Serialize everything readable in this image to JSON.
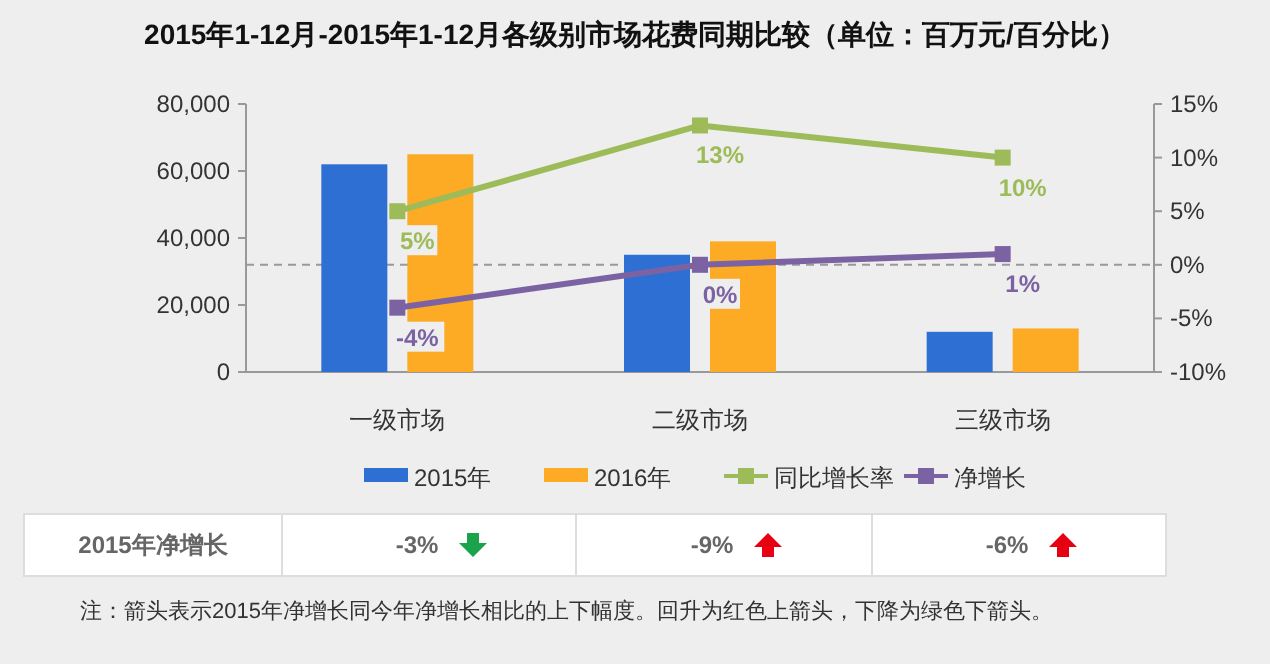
{
  "chart_data": [
    {
      "type": "bar",
      "title": "2015年1-12月-2015年1-12月各级别市场花费同期比较（单位：百万元/百分比）",
      "categories": [
        "一级市场",
        "二级市场",
        "三级市场"
      ],
      "series": [
        {
          "name": "2015年",
          "color": "#2e6fd4",
          "values": [
            62000,
            35000,
            12000
          ]
        },
        {
          "name": "2016年",
          "color": "#fdaa25",
          "values": [
            65000,
            39000,
            13000
          ]
        },
        {
          "name": "同比增长率",
          "type": "line",
          "axis": "y2",
          "color": "#9dbb59",
          "values": [
            5,
            13,
            10
          ],
          "value_labels": [
            "5%",
            "13%",
            "10%"
          ]
        },
        {
          "name": "净增长",
          "type": "line",
          "axis": "y2",
          "color": "#7b62a3",
          "values": [
            -4,
            0,
            1
          ],
          "value_labels": [
            "-4%",
            "0%",
            "1%"
          ]
        }
      ],
      "ylim": [
        0,
        80000
      ],
      "yticks": [
        0,
        {
          "value": 20000,
          "label": "20,000"
        },
        {
          "value": 40000,
          "label": "40,000"
        },
        {
          "value": 60000,
          "label": "60,000"
        },
        {
          "value": 80000,
          "label": "80,000"
        }
      ],
      "y2lim": [
        -10,
        15
      ],
      "y2ticks": [
        {
          "value": -10,
          "label": "-10%"
        },
        {
          "value": -5,
          "label": "-5%"
        },
        {
          "value": 0,
          "label": "0%"
        },
        {
          "value": 5,
          "label": "5%"
        },
        {
          "value": 10,
          "label": "10%"
        },
        {
          "value": 15,
          "label": "15%"
        }
      ],
      "ref_lines": [
        {
          "axis": "y2",
          "value": 0,
          "color": "#999999",
          "line_style": "dashed"
        }
      ],
      "marker": "square",
      "legend": "bottom"
    },
    {
      "type": "other",
      "annotations": [
        "2015年净增长",
        "-3%",
        "-9%",
        "-6%",
        "注：箭头表示2015年净增长同今年净增长相比的上下幅度。回升为红色上箭头，下降为绿色下箭头。"
      ],
      "colors": [
        "#1aa34a",
        "#e60012",
        "#e60012"
      ]
    }
  ]
}
